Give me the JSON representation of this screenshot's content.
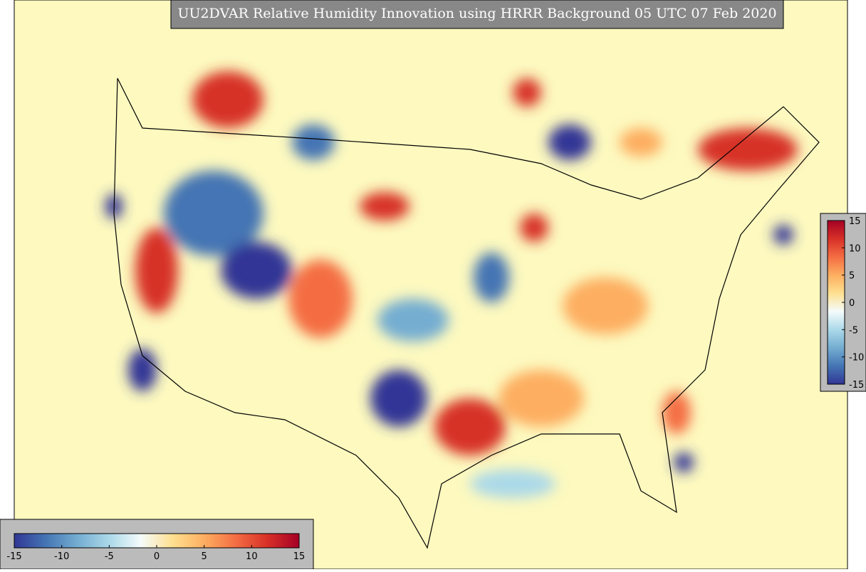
{
  "title": "UU2DVAR Relative Humidity Innovation using HRRR Background 05 UTC 07 Feb 2020",
  "colorbars": [
    {
      "orientation": "horizontal",
      "range": [
        -15,
        15
      ],
      "ticks": [
        -15,
        -10,
        -5,
        0,
        5,
        10,
        15
      ]
    },
    {
      "orientation": "vertical",
      "range": [
        -15,
        15
      ],
      "ticks": [
        -15,
        -10,
        -5,
        0,
        5,
        10,
        15
      ]
    }
  ],
  "colors": [
    "#313695",
    "#4575b4",
    "#74add1",
    "#abd9e9",
    "#f4fbfb",
    "#fee090",
    "#fdae61",
    "#f46d43",
    "#d73027",
    "#a50026"
  ]
}
